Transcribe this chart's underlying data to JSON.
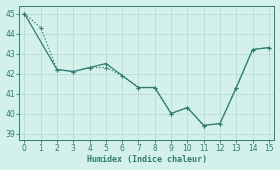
{
  "line1_x": [
    0,
    1,
    2,
    3,
    4,
    5,
    6,
    7,
    8,
    9,
    10,
    11,
    12,
    13,
    14,
    15
  ],
  "line1_y": [
    45.0,
    44.3,
    42.2,
    42.1,
    42.3,
    42.3,
    41.9,
    41.3,
    41.3,
    40.0,
    40.3,
    39.4,
    39.5,
    41.3,
    43.2,
    43.3
  ],
  "line2_x": [
    0,
    2,
    3,
    4,
    5,
    7,
    8,
    9,
    10,
    11,
    12,
    13,
    14,
    15
  ],
  "line2_y": [
    45.0,
    42.2,
    42.1,
    42.3,
    42.5,
    41.3,
    41.3,
    40.0,
    40.3,
    39.4,
    39.5,
    41.3,
    43.2,
    43.3
  ],
  "color": "#2e7d73",
  "bg_color": "#d4f0ea",
  "grid_color": "#b8ddd6",
  "xlabel": "Humidex (Indice chaleur)",
  "ylim": [
    38.7,
    45.4
  ],
  "xlim": [
    -0.3,
    15.3
  ],
  "yticks": [
    39,
    40,
    41,
    42,
    43,
    44,
    45
  ],
  "xticks": [
    0,
    1,
    2,
    3,
    4,
    5,
    6,
    7,
    8,
    9,
    10,
    11,
    12,
    13,
    14,
    15
  ],
  "markersize": 2.8,
  "linewidth": 0.9,
  "linewidth2": 0.9
}
